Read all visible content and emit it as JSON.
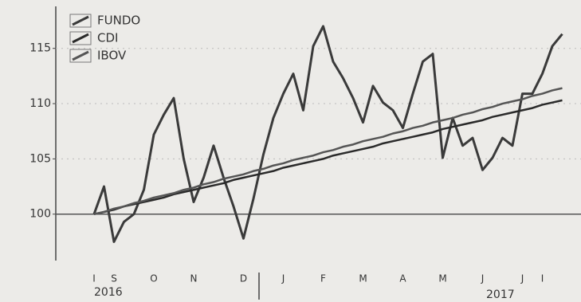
{
  "chart_data": {
    "type": "line",
    "categories": [
      "I",
      null,
      "S",
      null,
      null,
      null,
      "O",
      null,
      null,
      null,
      "N",
      null,
      null,
      null,
      null,
      "D",
      null,
      null,
      null,
      "J",
      null,
      null,
      null,
      "F",
      null,
      null,
      null,
      "M",
      null,
      null,
      null,
      "A",
      null,
      null,
      null,
      "M",
      null,
      null,
      null,
      "J",
      null,
      null,
      null,
      "J",
      null,
      "I",
      null,
      null
    ],
    "years": [
      "2016",
      "2017"
    ],
    "series": [
      {
        "name": "FUNDO",
        "color": "#3a3a3a",
        "values": [
          100,
          102.5,
          97.5,
          99.3,
          100,
          102.2,
          107.2,
          109,
          110.5,
          105,
          101.1,
          103.3,
          106.2,
          103.3,
          100.7,
          97.8,
          101.4,
          105.4,
          108.7,
          110.9,
          112.7,
          109.4,
          115.2,
          117,
          113.8,
          112.3,
          110.5,
          108.3,
          111.6,
          110.1,
          109.4,
          107.8,
          110.9,
          113.8,
          114.5,
          105.1,
          108.7,
          106.2,
          106.9,
          104,
          105.1,
          106.9,
          106.2,
          110.9,
          110.9,
          112.7,
          115.2,
          116.3
        ]
      },
      {
        "name": "CDI",
        "color": "#2a2a2a",
        "values": [
          100,
          100.2,
          100.4,
          100.7,
          100.9,
          101.1,
          101.3,
          101.5,
          101.8,
          102,
          102.2,
          102.4,
          102.6,
          102.8,
          103.1,
          103.3,
          103.5,
          103.7,
          103.9,
          104.2,
          104.4,
          104.6,
          104.8,
          105,
          105.3,
          105.5,
          105.7,
          105.9,
          106.1,
          106.4,
          106.6,
          106.8,
          107,
          107.2,
          107.4,
          107.7,
          107.9,
          108.1,
          108.3,
          108.5,
          108.8,
          109,
          109.2,
          109.4,
          109.6,
          109.9,
          110.1,
          110.3
        ]
      },
      {
        "name": "IBOV",
        "color": "#555555",
        "values": [
          100,
          100.2,
          100.5,
          100.7,
          101,
          101.2,
          101.5,
          101.7,
          101.9,
          102.2,
          102.4,
          102.7,
          102.9,
          103.2,
          103.4,
          103.6,
          103.9,
          104.1,
          104.4,
          104.6,
          104.9,
          105.1,
          105.3,
          105.6,
          105.8,
          106.1,
          106.3,
          106.6,
          106.8,
          107,
          107.3,
          107.5,
          107.8,
          108,
          108.3,
          108.5,
          108.7,
          109,
          109.2,
          109.5,
          109.7,
          110,
          110.2,
          110.4,
          110.7,
          110.9,
          111.2,
          111.4
        ]
      }
    ],
    "ylim": [
      95.8,
      118.8
    ],
    "yticks": [
      100,
      105,
      110,
      115
    ],
    "baseline": 100,
    "grid": true,
    "legend": "top-left"
  }
}
